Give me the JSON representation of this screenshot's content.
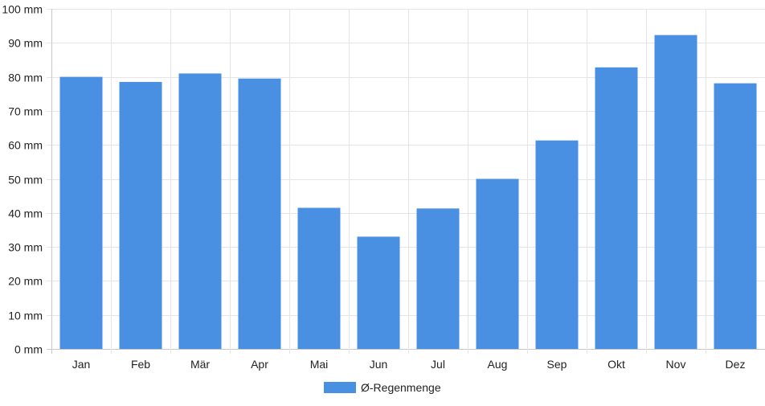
{
  "chart_data": {
    "type": "bar",
    "categories": [
      "Jan",
      "Feb",
      "Mär",
      "Apr",
      "Mai",
      "Jun",
      "Jul",
      "Aug",
      "Sep",
      "Okt",
      "Nov",
      "Dez"
    ],
    "series": [
      {
        "name": "Ø-Regenmenge",
        "values": [
          80,
          78.5,
          81,
          79.5,
          41.5,
          33,
          41.3,
          50,
          61.3,
          82.8,
          92.3,
          78.1
        ]
      }
    ],
    "y_ticks": [
      "0 mm",
      "10 mm",
      "20 mm",
      "30 mm",
      "40 mm",
      "50 mm",
      "60 mm",
      "70 mm",
      "80 mm",
      "90 mm",
      "100 mm"
    ],
    "ylim": [
      0,
      100
    ],
    "grid": true,
    "legend_position": "bottom-center",
    "bar_color": "#4a90e2"
  }
}
